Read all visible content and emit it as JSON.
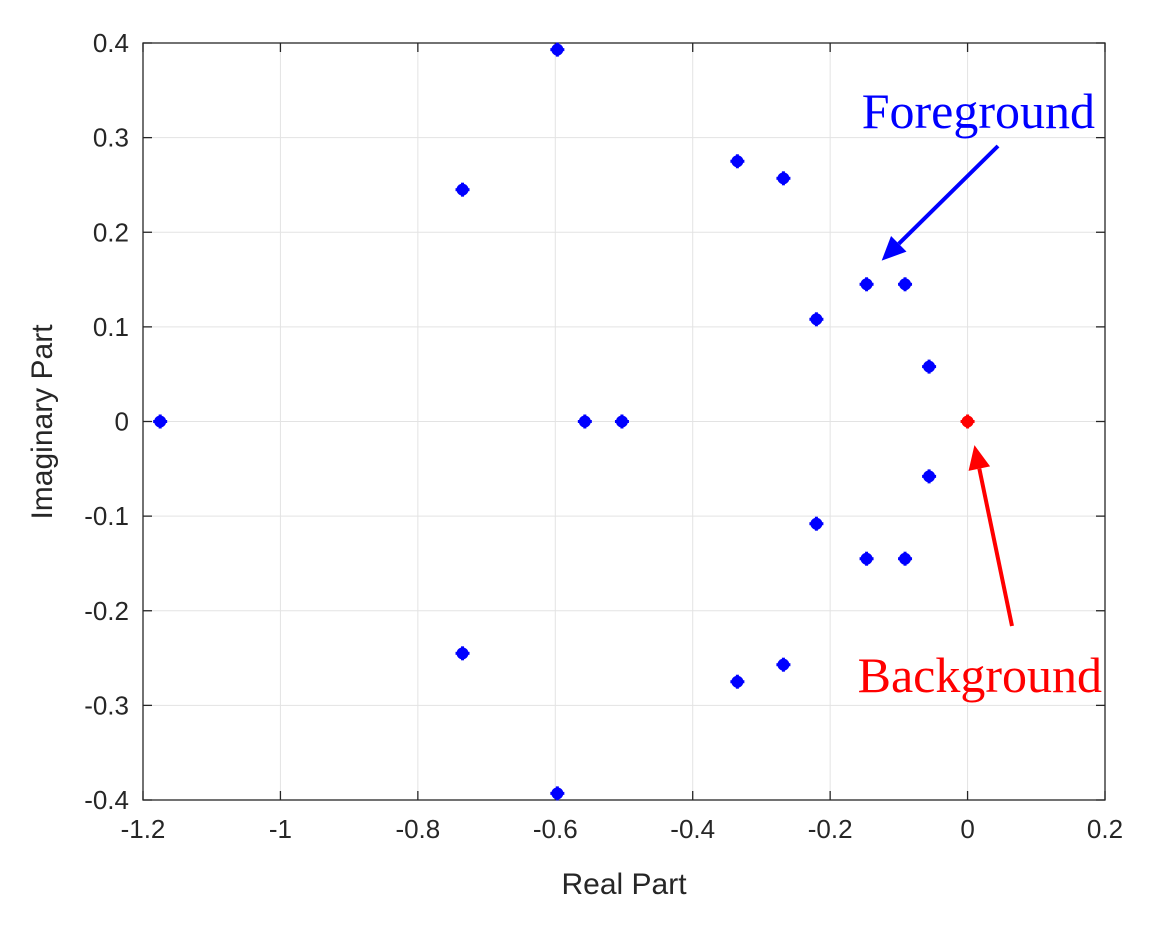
{
  "chart_data": {
    "type": "scatter",
    "xlabel": "Real Part",
    "ylabel": "Imaginary Part",
    "xlim": [
      -1.2,
      0.2
    ],
    "ylim": [
      -0.4,
      0.4
    ],
    "xticks": [
      -1.2,
      -1,
      -0.8,
      -0.6,
      -0.4,
      -0.2,
      0,
      0.2
    ],
    "xtick_labels": [
      "-1.2",
      "-1",
      "-0.8",
      "-0.6",
      "-0.4",
      "-0.2",
      "0",
      "0.2"
    ],
    "yticks": [
      -0.4,
      -0.3,
      -0.2,
      -0.1,
      0,
      0.1,
      0.2,
      0.3,
      0.4
    ],
    "ytick_labels": [
      "-0.4",
      "-0.3",
      "-0.2",
      "-0.1",
      "0",
      "0.1",
      "0.2",
      "0.3",
      "0.4"
    ],
    "grid": true,
    "series": [
      {
        "color": "#0000ff",
        "points": [
          {
            "x": -1.175,
            "y": 0
          },
          {
            "x": -0.735,
            "y": 0.245
          },
          {
            "x": -0.735,
            "y": -0.245
          },
          {
            "x": -0.597,
            "y": 0.393
          },
          {
            "x": -0.597,
            "y": -0.393
          },
          {
            "x": -0.557,
            "y": 0
          },
          {
            "x": -0.503,
            "y": 0
          },
          {
            "x": -0.335,
            "y": 0.275
          },
          {
            "x": -0.335,
            "y": -0.275
          },
          {
            "x": -0.268,
            "y": 0.257
          },
          {
            "x": -0.268,
            "y": -0.257
          },
          {
            "x": -0.22,
            "y": 0.108
          },
          {
            "x": -0.22,
            "y": -0.108
          },
          {
            "x": -0.147,
            "y": 0.145
          },
          {
            "x": -0.147,
            "y": -0.145
          },
          {
            "x": -0.091,
            "y": 0.145
          },
          {
            "x": -0.091,
            "y": -0.145
          },
          {
            "x": -0.056,
            "y": 0.058
          },
          {
            "x": -0.056,
            "y": -0.058
          }
        ]
      },
      {
        "color": "#ff0000",
        "points": [
          {
            "x": 0,
            "y": 0
          }
        ]
      }
    ],
    "annotations": [
      {
        "text": "Foreground",
        "color": "#0000ff",
        "arrow_to": {
          "x": -0.125,
          "y": 0.17
        }
      },
      {
        "text": "Background",
        "color": "#ff0000",
        "arrow_to": {
          "x": 0.01,
          "y": -0.025
        }
      }
    ]
  }
}
